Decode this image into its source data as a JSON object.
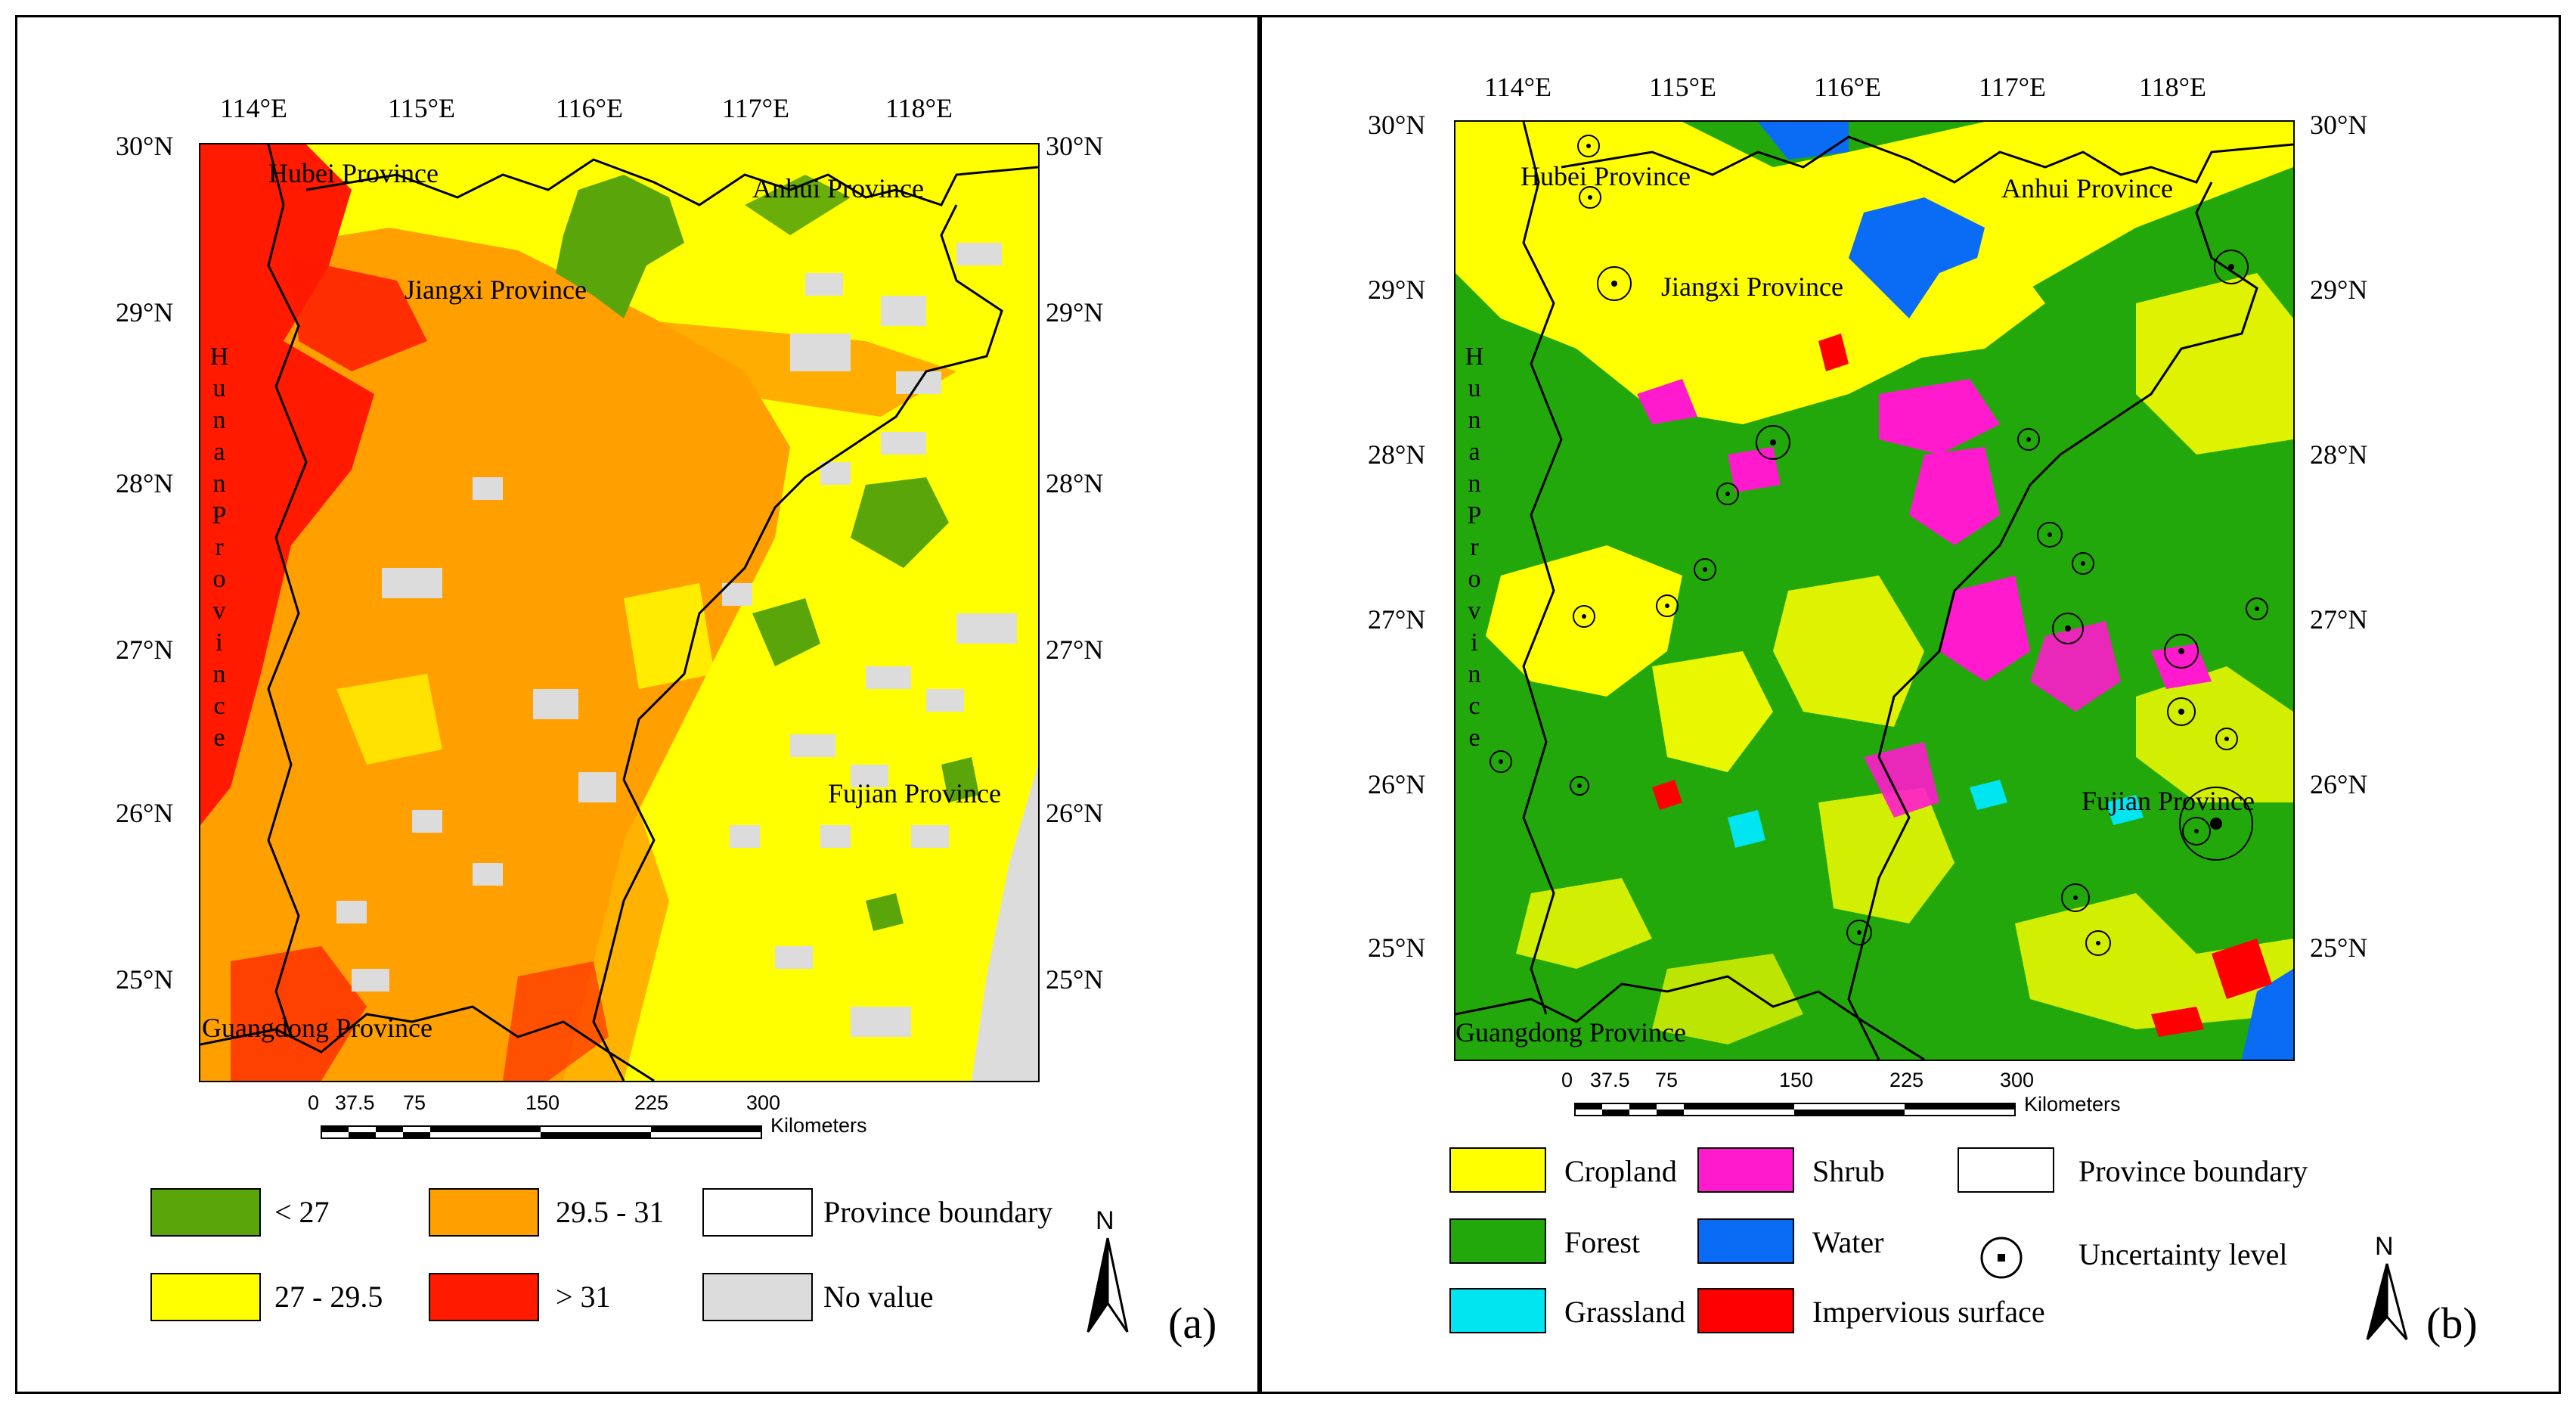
{
  "panel_a": {
    "lon_ticks": [
      "114°E",
      "115°E",
      "116°E",
      "117°E",
      "118°E"
    ],
    "lat_ticks": [
      "30°N",
      "29°N",
      "28°N",
      "27°N",
      "26°N",
      "25°N"
    ],
    "provinces": {
      "hubei": "Hubei Province",
      "anhui": "Anhui Province",
      "jiangxi": "Jiangxi Province",
      "fujian": "Fujian Province",
      "guangdong": "Guangdong Province",
      "hunan": "Hunan Province"
    },
    "scale": {
      "ticks": [
        "0",
        "37.5",
        "75",
        "150",
        "225",
        "300"
      ],
      "unit": "Kilometers"
    },
    "legend": [
      {
        "label": "< 27",
        "color": "#5aa50a"
      },
      {
        "label": "27 - 29.5",
        "color": "#ffff00"
      },
      {
        "label": "29.5 - 31",
        "color": "#ff9f00"
      },
      {
        "label": "> 31",
        "color": "#ff1a00"
      },
      {
        "label": "Province boundary",
        "color": "#ffffff"
      },
      {
        "label": "No value",
        "color": "#dcdcdc"
      }
    ],
    "north_label": "N",
    "panel_label": "(a)"
  },
  "panel_b": {
    "lon_ticks": [
      "114°E",
      "115°E",
      "116°E",
      "117°E",
      "118°E"
    ],
    "lat_ticks": [
      "30°N",
      "29°N",
      "28°N",
      "27°N",
      "26°N",
      "25°N"
    ],
    "provinces": {
      "hubei": "Hubei Province",
      "anhui": "Anhui Province",
      "jiangxi": "Jiangxi Province",
      "fujian": "Fujian Province",
      "guangdong": "Guangdong Province",
      "hunan": "Hunan Province"
    },
    "scale": {
      "ticks": [
        "0",
        "37.5",
        "75",
        "150",
        "225",
        "300"
      ],
      "unit": "Kilometers"
    },
    "legend": [
      {
        "label": "Cropland",
        "color": "#ffff00"
      },
      {
        "label": "Forest",
        "color": "#22a80a"
      },
      {
        "label": "Grassland",
        "color": "#00e5f0"
      },
      {
        "label": "Shrub",
        "color": "#ff1acd"
      },
      {
        "label": "Water",
        "color": "#0a6cf5"
      },
      {
        "label": "Impervious surface",
        "color": "#ff0000"
      },
      {
        "label": "Province boundary",
        "color": "#ffffff"
      },
      {
        "label": "Uncertainty level",
        "icon": "uncertainty-circle-icon"
      }
    ],
    "north_label": "N",
    "panel_label": "(b)"
  }
}
